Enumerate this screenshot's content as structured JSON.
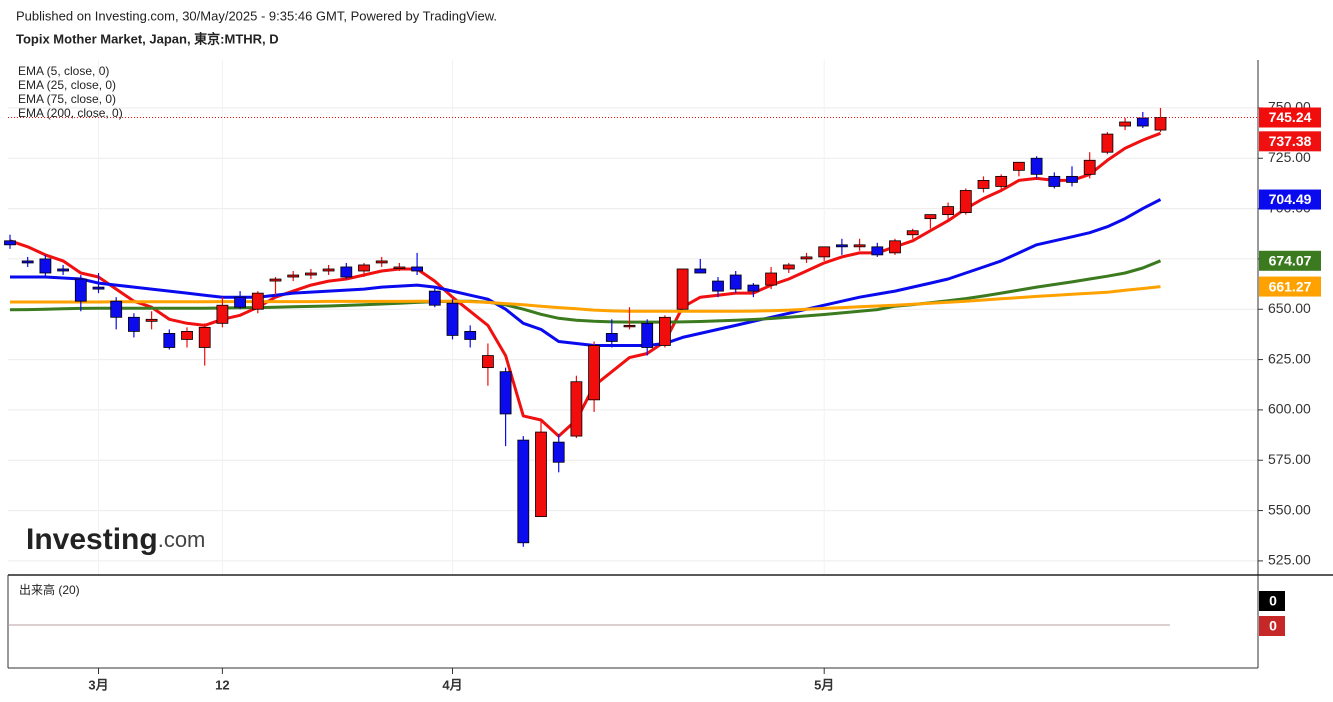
{
  "chart_data": {
    "type": "candlestick",
    "subtitle": "Published on Investing.com, 30/May/2025 - 9:35:46 GMT, Powered by TradingView.",
    "title": "Topix Mother Market, Japan, 東京:MTHR, D",
    "watermark": [
      "Investing",
      ".com"
    ],
    "categories": [
      null,
      null,
      null,
      null,
      null,
      "3月",
      null,
      null,
      null,
      null,
      null,
      null,
      "12",
      null,
      null,
      null,
      null,
      null,
      null,
      null,
      null,
      null,
      null,
      null,
      null,
      "4月",
      null,
      null,
      null,
      null,
      null,
      null,
      null,
      null,
      null,
      null,
      null,
      null,
      null,
      null,
      null,
      null,
      null,
      null,
      null,
      null,
      "5月",
      null,
      null,
      null,
      null,
      null,
      null,
      null,
      null,
      null,
      null,
      null,
      null,
      null,
      null,
      null,
      null,
      null,
      null,
      null
    ],
    "open": [
      684,
      674,
      675,
      670,
      665,
      661,
      654,
      646,
      644,
      638,
      635,
      631,
      643,
      656,
      650,
      664,
      666,
      667,
      669,
      671,
      669,
      673,
      671,
      671,
      659,
      653,
      639,
      621,
      619,
      585,
      547,
      584,
      587,
      605,
      638,
      642,
      643,
      632,
      650,
      670,
      664,
      667,
      662,
      662,
      670,
      675,
      676,
      682,
      681,
      681,
      678,
      687,
      695,
      697,
      698,
      710,
      711,
      719,
      725,
      716,
      716,
      717,
      728,
      741,
      745,
      739
    ],
    "high": [
      687,
      676,
      677,
      672,
      667,
      668,
      656,
      648,
      649,
      640,
      641,
      643,
      656,
      659,
      659,
      666,
      669,
      670,
      672,
      673,
      673,
      676,
      673,
      678,
      661,
      655,
      642,
      633,
      621,
      587,
      595,
      588,
      617,
      634,
      645,
      651,
      645,
      647,
      670,
      675,
      666,
      669,
      663,
      671,
      673,
      678,
      681,
      685,
      685,
      683,
      685,
      690,
      697,
      703,
      710,
      716,
      717,
      723,
      726,
      718,
      721,
      728,
      738,
      745,
      748,
      750
    ],
    "low": [
      680,
      671,
      666,
      667,
      649,
      658,
      640,
      636,
      640,
      630,
      631,
      622,
      641,
      650,
      648,
      657,
      664,
      665,
      667,
      665,
      666,
      671,
      669,
      667,
      651,
      635,
      631,
      612,
      582,
      532,
      547,
      569,
      586,
      599,
      631,
      640,
      627,
      631,
      650,
      668,
      656,
      658,
      656,
      660,
      668,
      673,
      674,
      677,
      679,
      676,
      677,
      685,
      690,
      694,
      697,
      708,
      709,
      716,
      715,
      710,
      711,
      715,
      727,
      739,
      740,
      738
    ],
    "close": [
      682,
      673,
      668,
      669,
      654,
      660,
      646,
      639,
      645,
      631,
      639,
      641,
      652,
      651,
      658,
      665,
      667,
      668,
      670,
      666,
      672,
      674,
      671,
      669,
      652,
      637,
      635,
      627,
      598,
      534,
      589,
      574,
      614,
      632,
      634,
      642,
      631,
      646,
      670,
      668,
      659,
      660,
      659,
      668,
      672,
      676,
      681,
      681,
      682,
      677,
      684,
      689,
      697,
      701,
      709,
      714,
      716,
      723,
      717,
      711,
      713,
      724,
      737,
      743,
      741,
      745.24
    ],
    "up_color": "#f20d0d",
    "down_color": "#0b0bee",
    "series": [
      {
        "name": "EMA (5, close, 0)",
        "color": "#f01010",
        "values": [
          684,
          681,
          677,
          674,
          668,
          666,
          660,
          654,
          651,
          645,
          643,
          642,
          645,
          647,
          651,
          656,
          659,
          662,
          664,
          665,
          667,
          669,
          670,
          670,
          664,
          656,
          649,
          642,
          627,
          597,
          595,
          587,
          595,
          612,
          619,
          626,
          628,
          634,
          651,
          656,
          657,
          658,
          658,
          662,
          665,
          669,
          673,
          676,
          678,
          678,
          681,
          684,
          689,
          694,
          700,
          705,
          709,
          714,
          715,
          714,
          714,
          717,
          724,
          730,
          734,
          737.38
        ]
      },
      {
        "name": "EMA (25, close, 0)",
        "color": "#0a0aee",
        "values": [
          666,
          666,
          666,
          665.5,
          665,
          663,
          662,
          661,
          660,
          659,
          658,
          657,
          656,
          656,
          656,
          657,
          658,
          658.5,
          659,
          659.5,
          660,
          661,
          661.5,
          662,
          661,
          659,
          657,
          655,
          650,
          643,
          640,
          634,
          633,
          632,
          632,
          632,
          632,
          633,
          636,
          638,
          640,
          642,
          644,
          646,
          648,
          650,
          652,
          654,
          656,
          657.5,
          659,
          661,
          663,
          665,
          668,
          671,
          674,
          678,
          682,
          684,
          686,
          688,
          691,
          695,
          700,
          704.49
        ]
      },
      {
        "name": "EMA (75, close, 0)",
        "color": "#3b7a1e",
        "values": [
          649.7,
          649.8,
          650,
          650.2,
          650.4,
          650.5,
          650.5,
          650.5,
          650.5,
          650.5,
          650.5,
          650.5,
          650.6,
          650.7,
          650.8,
          651,
          651.2,
          651.4,
          651.6,
          651.9,
          652.2,
          652.6,
          653,
          653.4,
          653.8,
          654,
          654,
          653.5,
          652.2,
          650,
          647.5,
          645.5,
          644.5,
          644,
          643.7,
          643.6,
          643.6,
          643.6,
          643.7,
          643.9,
          644.2,
          644.5,
          644.9,
          645.4,
          646,
          646.7,
          647.4,
          648.2,
          649,
          649.8,
          651.5,
          652.3,
          653.2,
          654.2,
          655.3,
          656.6,
          658,
          659.5,
          661,
          662.3,
          663.6,
          665,
          666.4,
          668,
          670.5,
          674.07
        ]
      },
      {
        "name": "EMA (200, close, 0)",
        "color": "#ffa200",
        "values": [
          653.6,
          653.6,
          653.6,
          653.6,
          653.6,
          653.6,
          653.7,
          653.7,
          653.7,
          653.7,
          653.7,
          653.7,
          653.8,
          653.8,
          653.8,
          653.8,
          653.8,
          653.8,
          653.9,
          653.9,
          653.9,
          653.9,
          653.9,
          654,
          654,
          654,
          653.8,
          653.4,
          652.8,
          652.2,
          651.5,
          650.8,
          650.2,
          649.6,
          649.2,
          649,
          649,
          649,
          649,
          649,
          649,
          649,
          649.1,
          649.3,
          649.6,
          650,
          650.4,
          650.8,
          651.2,
          651.6,
          652,
          652.5,
          653,
          653.5,
          654,
          654.6,
          655.2,
          655.8,
          656.4,
          656.9,
          657.4,
          657.9,
          658.4,
          659.4,
          660.3,
          661.27
        ]
      }
    ],
    "ylim": [
      518,
      773.8
    ],
    "yticks": [
      {
        "value": 525,
        "label": "525.00"
      },
      {
        "value": 550,
        "label": "550.00"
      },
      {
        "value": 575,
        "label": "575.00"
      },
      {
        "value": 600,
        "label": "600.00"
      },
      {
        "value": 625,
        "label": "625.00"
      },
      {
        "value": 650,
        "label": "650.00"
      },
      {
        "value": 675,
        "label": "675.00"
      },
      {
        "value": 700,
        "label": "700.00"
      },
      {
        "value": 725,
        "label": "725.00"
      },
      {
        "value": 750,
        "label": "750.00"
      }
    ],
    "grid": true,
    "volume": {
      "title": "出来高 (20)",
      "last": 0,
      "ma": 0
    }
  }
}
